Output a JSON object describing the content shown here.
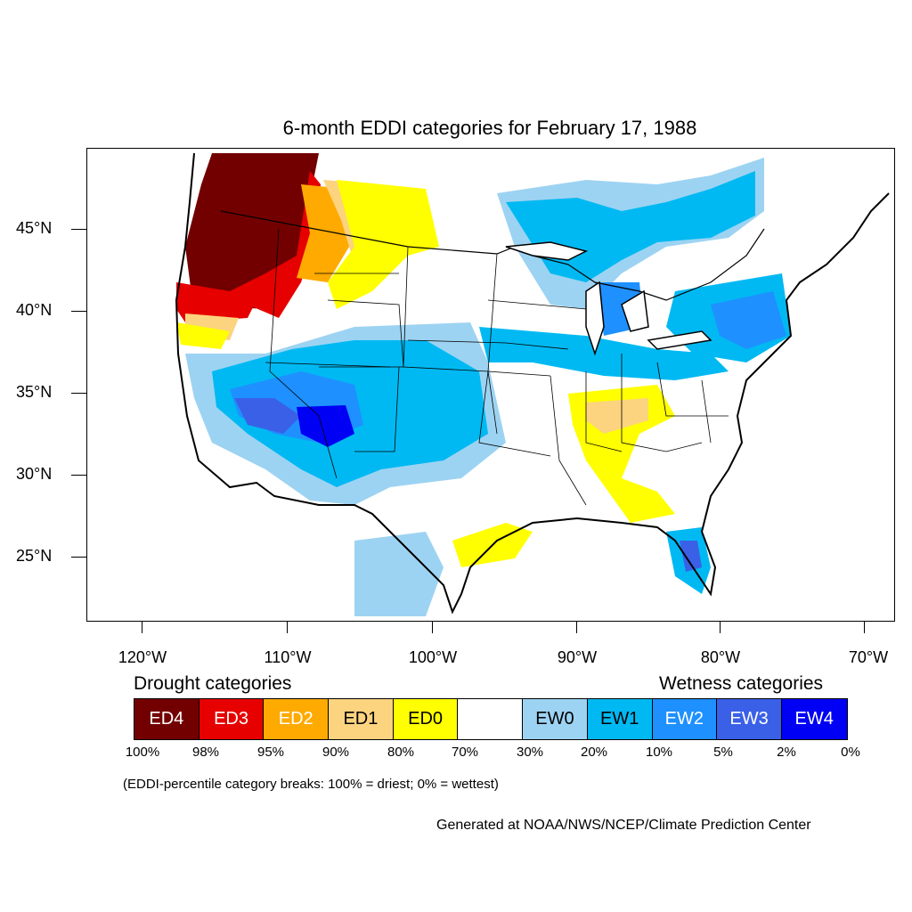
{
  "title": "6-month EDDI categories for February 17, 1988",
  "lat_labels": [
    "45°N",
    "40°N",
    "35°N",
    "30°N",
    "25°N"
  ],
  "lon_labels": [
    "120°W",
    "110°W",
    "100°W",
    "90°W",
    "80°W",
    "70°W"
  ],
  "legend": {
    "drought_heading": "Drought categories",
    "wetness_heading": "Wetness categories",
    "categories": [
      {
        "label": "ED4",
        "color": "#730000",
        "text_color": "#ffffff"
      },
      {
        "label": "ED3",
        "color": "#e60000",
        "text_color": "#ffffff"
      },
      {
        "label": "ED2",
        "color": "#ffaa00",
        "text_color": "#ffffff"
      },
      {
        "label": "ED1",
        "color": "#fcd37f",
        "text_color": "#000000"
      },
      {
        "label": "ED0",
        "color": "#ffff00",
        "text_color": "#000000"
      },
      {
        "label": "",
        "color": "#ffffff",
        "text_color": "#000000"
      },
      {
        "label": "EW0",
        "color": "#9dd3f2",
        "text_color": "#000000"
      },
      {
        "label": "EW1",
        "color": "#00b9f2",
        "text_color": "#000000"
      },
      {
        "label": "EW2",
        "color": "#1e90ff",
        "text_color": "#ffffff"
      },
      {
        "label": "EW3",
        "color": "#3a60e8",
        "text_color": "#ffffff"
      },
      {
        "label": "EW4",
        "color": "#0000f5",
        "text_color": "#ffffff"
      }
    ],
    "breaks": [
      "100%",
      "98%",
      "95%",
      "90%",
      "80%",
      "70%",
      "30%",
      "20%",
      "10%",
      "5%",
      "2%",
      "0%"
    ]
  },
  "note": "(EDDI-percentile category breaks: 100% = driest; 0% = wettest)",
  "credit": "Generated at NOAA/NWS/NCEP/Climate Prediction Center"
}
